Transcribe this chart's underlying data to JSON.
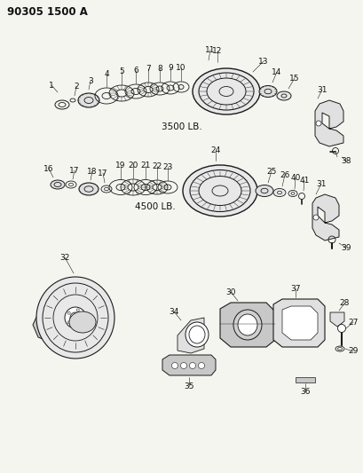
{
  "title": "90305 1500 A",
  "bg_color": "#f5f5f0",
  "line_color": "#1a1a1a",
  "label_color": "#111111",
  "title_fontsize": 8.5,
  "label_fontsize": 6.5,
  "fig_width": 4.1,
  "fig_height": 5.33,
  "dpi": 100,
  "label_3500": "3500 LB.",
  "label_4500": "4500 LB."
}
